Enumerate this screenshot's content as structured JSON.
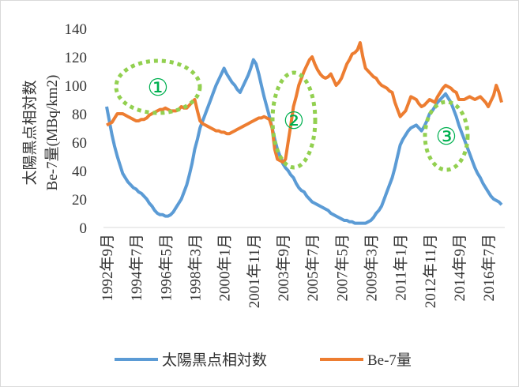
{
  "chart_data": {
    "type": "line",
    "ylabel": [
      "太陽黒点相対数",
      "Be-7量(MBq/km2)"
    ],
    "annotations": [
      "①",
      "②",
      "③"
    ],
    "categories": [
      "1992年9月",
      null,
      null,
      null,
      null,
      null,
      null,
      null,
      null,
      null,
      null,
      "1994年7月",
      null,
      null,
      null,
      null,
      null,
      null,
      null,
      null,
      null,
      null,
      "1996年5月",
      null,
      null,
      null,
      null,
      null,
      null,
      null,
      null,
      null,
      null,
      "1998年3月",
      null,
      null,
      null,
      null,
      null,
      null,
      null,
      null,
      null,
      null,
      "2000年1月",
      null,
      null,
      null,
      null,
      null,
      null,
      null,
      null,
      null,
      null,
      "2001年11月",
      null,
      null,
      null,
      null,
      null,
      null,
      null,
      null,
      null,
      null,
      "2003年9月",
      null,
      null,
      null,
      null,
      null,
      null,
      null,
      null,
      null,
      null,
      "2005年7月",
      null,
      null,
      null,
      null,
      null,
      null,
      null,
      null,
      null,
      null,
      "2007年5月",
      null,
      null,
      null,
      null,
      null,
      null,
      null,
      null,
      null,
      null,
      "2009年3月",
      null,
      null,
      null,
      null,
      null,
      null,
      null,
      null,
      null,
      null,
      "2011年1月",
      null,
      null,
      null,
      null,
      null,
      null,
      null,
      null,
      null,
      null,
      "2012年11月",
      null,
      null,
      null,
      null,
      null,
      null,
      null,
      null,
      null,
      null,
      "2014年9月",
      null,
      null,
      null,
      null,
      null,
      null,
      null,
      null,
      null,
      null,
      "2016年7月",
      null,
      null,
      null,
      null,
      null
    ],
    "series": [
      {
        "name": "太陽黒点相対数",
        "color": "#5b9bd5",
        "values": [
          85,
          75,
          65,
          57,
          50,
          44,
          38,
          35,
          32,
          30,
          28,
          27,
          25,
          24,
          22,
          20,
          17,
          15,
          12,
          10,
          9,
          9,
          8,
          8,
          9,
          11,
          14,
          17,
          20,
          25,
          30,
          37,
          45,
          55,
          62,
          70,
          75,
          80,
          85,
          90,
          95,
          100,
          104,
          108,
          112,
          108,
          105,
          102,
          100,
          97,
          95,
          99,
          103,
          107,
          112,
          118,
          115,
          108,
          100,
          92,
          85,
          78,
          70,
          62,
          55,
          50,
          45,
          42,
          40,
          37,
          35,
          31,
          28,
          26,
          25,
          22,
          20,
          18,
          17,
          16,
          15,
          14,
          13,
          12,
          10,
          9,
          8,
          7,
          6,
          5,
          5,
          4,
          4,
          3,
          3,
          3,
          3,
          3,
          4,
          5,
          7,
          10,
          12,
          15,
          20,
          25,
          30,
          35,
          42,
          50,
          58,
          62,
          65,
          68,
          70,
          71,
          72,
          70,
          68,
          71,
          75,
          80,
          82,
          85,
          88,
          90,
          92,
          94,
          91,
          88,
          83,
          78,
          72,
          67,
          62,
          57,
          52,
          47,
          42,
          38,
          35,
          31,
          28,
          25,
          22,
          20,
          19,
          18,
          16
        ]
      },
      {
        "name": "Be-7量",
        "color": "#ed7d31",
        "values": [
          72,
          73,
          74,
          77,
          80,
          80,
          80,
          79,
          78,
          77,
          76,
          75,
          75,
          76,
          76,
          77,
          79,
          80,
          81,
          82,
          83,
          83,
          84,
          83,
          82,
          82,
          82,
          83,
          85,
          84,
          84,
          86,
          88,
          90,
          82,
          75,
          73,
          72,
          71,
          70,
          69,
          68,
          68,
          67,
          67,
          66,
          66,
          67,
          68,
          69,
          70,
          71,
          72,
          73,
          74,
          75,
          76,
          77,
          77,
          78,
          77,
          76,
          70,
          55,
          48,
          47,
          46,
          48,
          60,
          72,
          85,
          92,
          100,
          105,
          110,
          114,
          118,
          120,
          115,
          111,
          108,
          106,
          105,
          106,
          108,
          104,
          100,
          102,
          105,
          110,
          115,
          118,
          122,
          123,
          125,
          130,
          120,
          112,
          110,
          108,
          106,
          105,
          102,
          100,
          99,
          98,
          96,
          95,
          88,
          83,
          78,
          80,
          82,
          87,
          92,
          91,
          90,
          87,
          85,
          86,
          88,
          90,
          89,
          88,
          92,
          95,
          98,
          100,
          99,
          98,
          96,
          95,
          90,
          90,
          90,
          91,
          92,
          91,
          90,
          91,
          92,
          90,
          88,
          85,
          89,
          93,
          100,
          95,
          88
        ]
      }
    ],
    "ylim": [
      0,
      140
    ],
    "yticks": [
      0,
      20,
      40,
      60,
      80,
      100,
      120,
      140
    ]
  }
}
